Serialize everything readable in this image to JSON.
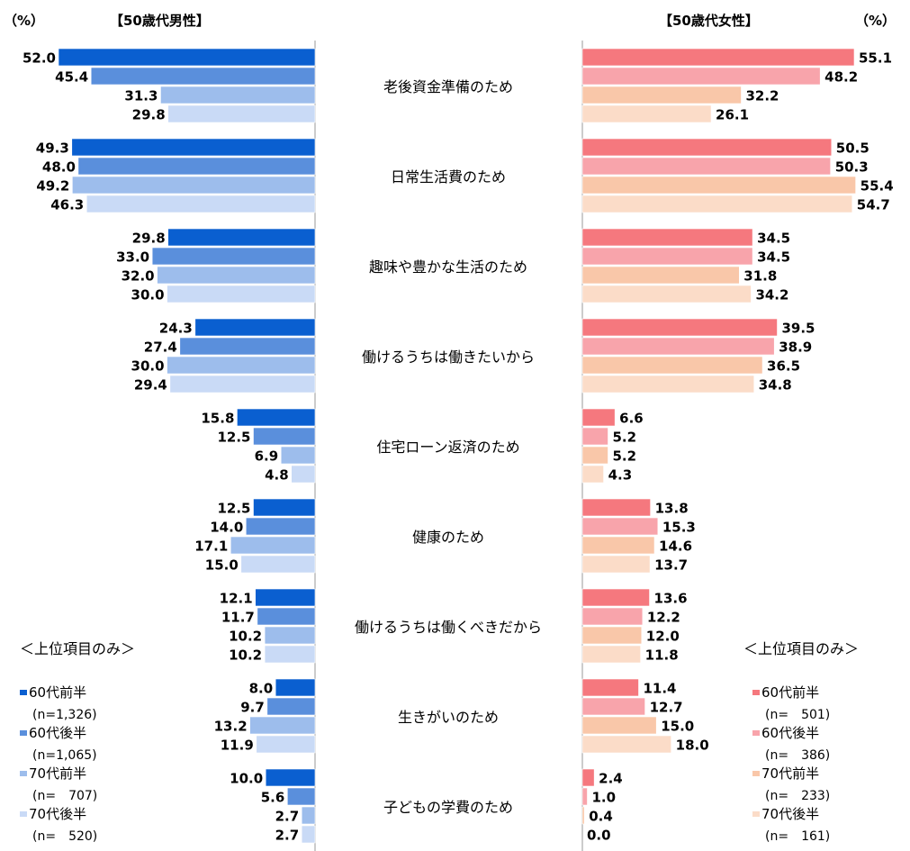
{
  "chart_data": {
    "type": "bar",
    "orientation": "horizontal-butterfly",
    "unit_label": "（%）",
    "xlim": [
      0,
      60
    ],
    "legend_note": "＜上位項目のみ＞",
    "categories": [
      "老後資金準備のため",
      "日常生活費のため",
      "趣味や豊かな生活のため",
      "働けるうちは働きたいから",
      "住宅ローン返済のため",
      "健康のため",
      "働けるうちは働くべきだから",
      "生きがいのため",
      "子どもの学費のため"
    ],
    "panels": [
      {
        "side": "left",
        "title": "【50歳代男性】",
        "series": [
          {
            "name": "60代前半",
            "n": "(n=1,326)",
            "color": "#0a5fd0",
            "values": [
              52.0,
              49.3,
              29.8,
              24.3,
              15.8,
              12.5,
              12.1,
              8.0,
              10.0
            ]
          },
          {
            "name": "60代後半",
            "n": "(n=1,065)",
            "color": "#5a8fdc",
            "values": [
              45.4,
              48.0,
              33.0,
              27.4,
              12.5,
              14.0,
              11.7,
              9.7,
              5.6
            ]
          },
          {
            "name": "70代前半",
            "n": "(n=　707)",
            "color": "#9dbdec",
            "values": [
              31.3,
              49.2,
              32.0,
              30.0,
              6.9,
              17.1,
              10.2,
              13.2,
              2.7
            ]
          },
          {
            "name": "70代後半",
            "n": "(n=　520)",
            "color": "#c9daf6",
            "values": [
              29.8,
              46.3,
              30.0,
              29.4,
              4.8,
              15.0,
              10.2,
              11.9,
              2.7
            ]
          }
        ]
      },
      {
        "side": "right",
        "title": "【50歳代女性】",
        "series": [
          {
            "name": "60代前半",
            "n": "(n=　501)",
            "color": "#f5787e",
            "values": [
              55.1,
              50.5,
              34.5,
              39.5,
              6.6,
              13.8,
              13.6,
              11.4,
              2.4
            ]
          },
          {
            "name": "60代後半",
            "n": "(n=　386)",
            "color": "#f8a4ab",
            "values": [
              48.2,
              50.3,
              34.5,
              38.9,
              5.2,
              15.3,
              12.2,
              12.7,
              1.0
            ]
          },
          {
            "name": "70代前半",
            "n": "(n=　233)",
            "color": "#f9c7a9",
            "values": [
              32.2,
              55.4,
              31.8,
              36.5,
              5.2,
              14.6,
              12.0,
              15.0,
              0.4
            ]
          },
          {
            "name": "70代後半",
            "n": "(n=　161)",
            "color": "#fbdcc8",
            "values": [
              26.1,
              54.7,
              34.2,
              34.8,
              4.3,
              13.7,
              11.8,
              18.0,
              0.0
            ]
          }
        ]
      }
    ]
  }
}
